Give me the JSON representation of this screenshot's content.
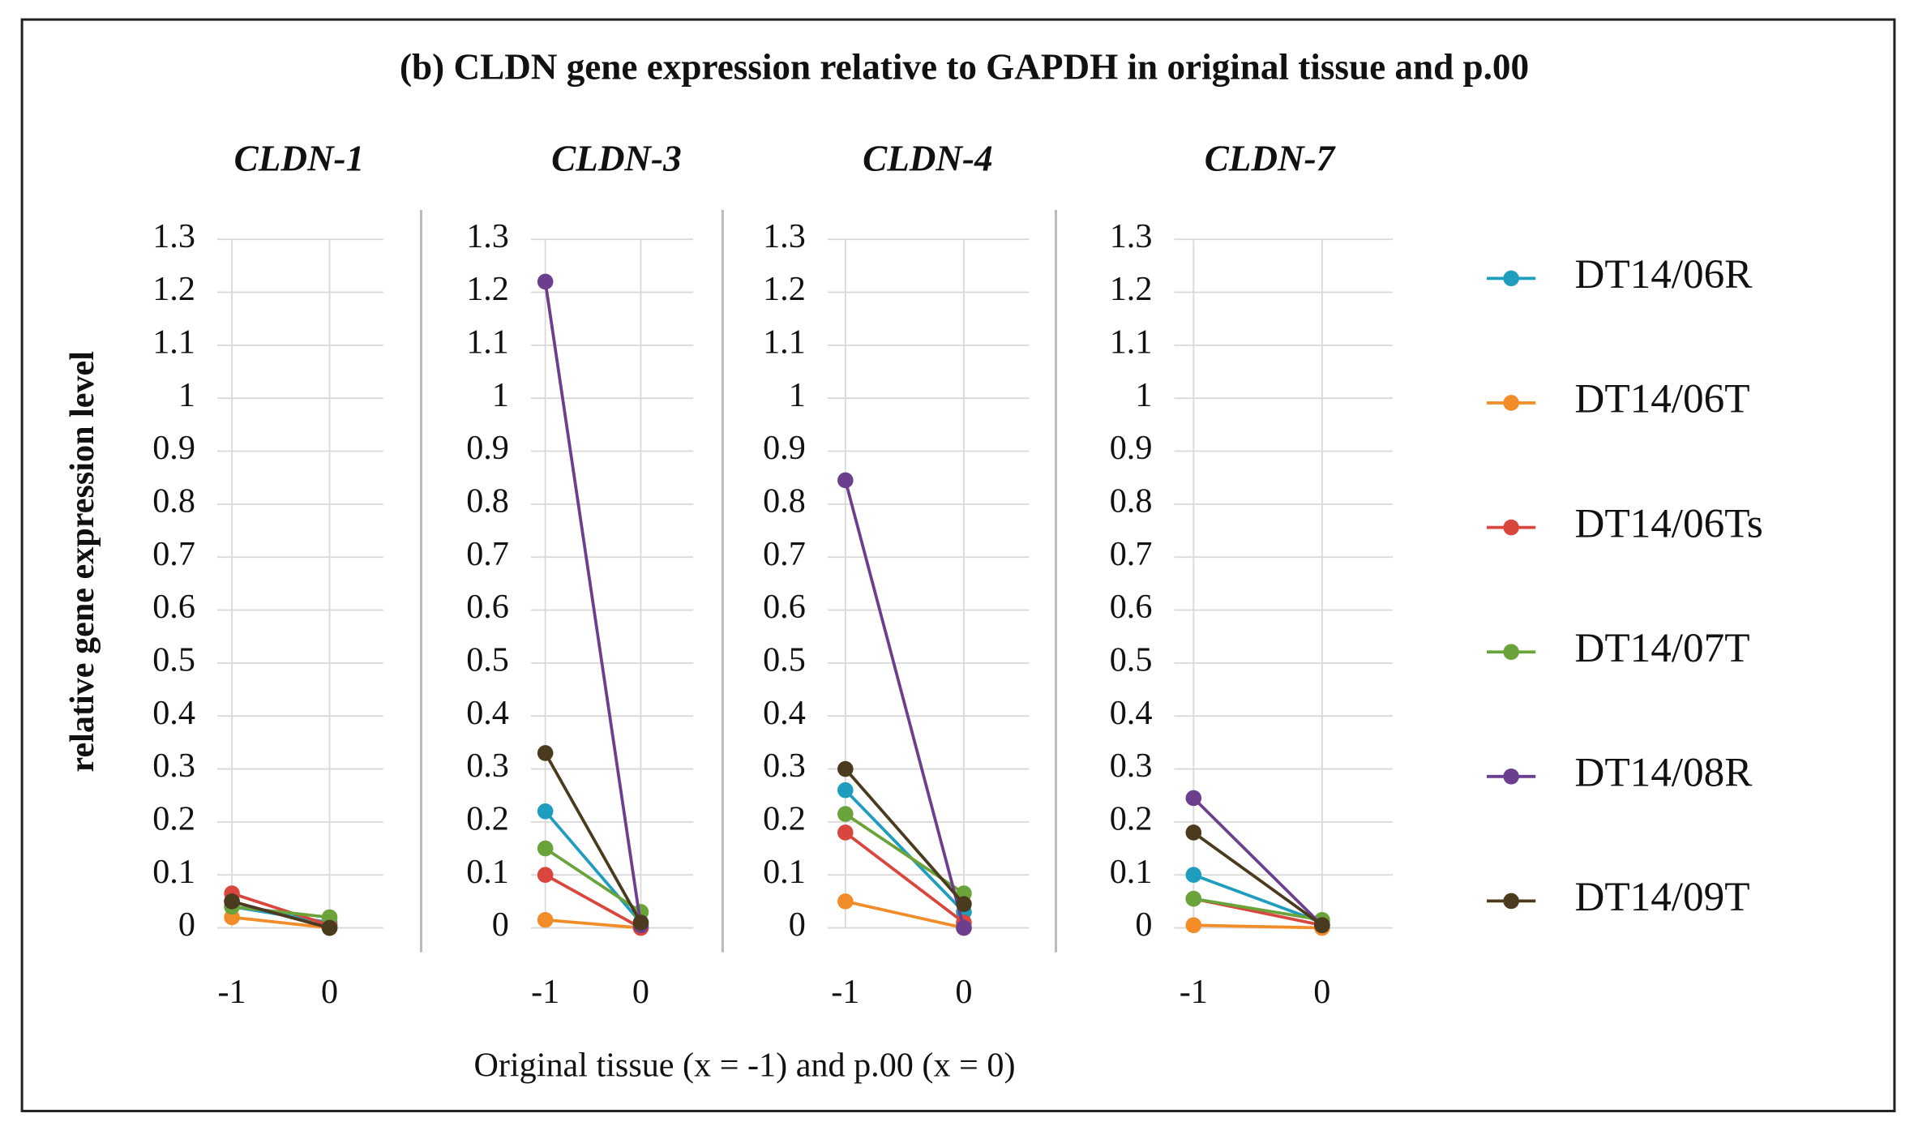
{
  "title": "(b) CLDN gene expression relative to GAPDH in original tissue and p.00",
  "ylabel": "relative gene expression level",
  "xlabel": "Original tissue (x = -1) and p.00 (x = 0)",
  "chart_data": [
    {
      "type": "line",
      "title": "CLDN-1",
      "x": [
        -1,
        0
      ],
      "xlim": [
        -1.15,
        0.55
      ],
      "xticks": [
        -1,
        0
      ],
      "ylim": [
        0,
        1.3
      ],
      "yticks": [
        0,
        0.1,
        0.2,
        0.3,
        0.4,
        0.5,
        0.6,
        0.7,
        0.8,
        0.9,
        1,
        1.1,
        1.2,
        1.3
      ],
      "grid": true,
      "series": [
        {
          "name": "DT14/06R",
          "color": "#1f9dbf",
          "values": [
            0.04,
            0.01
          ]
        },
        {
          "name": "DT14/06T",
          "color": "#f28c28",
          "values": [
            0.02,
            0.0
          ]
        },
        {
          "name": "DT14/06Ts",
          "color": "#d9463e",
          "values": [
            0.065,
            0.005
          ]
        },
        {
          "name": "DT14/07T",
          "color": "#6aa33a",
          "values": [
            0.04,
            0.02
          ]
        },
        {
          "name": "DT14/08R",
          "color": "#6b3f8e",
          "values": [
            0.05,
            0.0
          ]
        },
        {
          "name": "DT14/09T",
          "color": "#4a3a1e",
          "values": [
            0.05,
            0.0
          ]
        }
      ]
    },
    {
      "type": "line",
      "title": "CLDN-3",
      "x": [
        -1,
        0
      ],
      "xlim": [
        -1.15,
        0.55
      ],
      "xticks": [
        -1,
        0
      ],
      "ylim": [
        0,
        1.3
      ],
      "yticks": [
        0,
        0.1,
        0.2,
        0.3,
        0.4,
        0.5,
        0.6,
        0.7,
        0.8,
        0.9,
        1,
        1.1,
        1.2,
        1.3
      ],
      "grid": true,
      "series": [
        {
          "name": "DT14/06R",
          "color": "#1f9dbf",
          "values": [
            0.22,
            0.01
          ]
        },
        {
          "name": "DT14/06T",
          "color": "#f28c28",
          "values": [
            0.015,
            0.0
          ]
        },
        {
          "name": "DT14/06Ts",
          "color": "#d9463e",
          "values": [
            0.1,
            0.0
          ]
        },
        {
          "name": "DT14/07T",
          "color": "#6aa33a",
          "values": [
            0.15,
            0.03
          ]
        },
        {
          "name": "DT14/08R",
          "color": "#6b3f8e",
          "values": [
            1.22,
            0.005
          ]
        },
        {
          "name": "DT14/09T",
          "color": "#4a3a1e",
          "values": [
            0.33,
            0.01
          ]
        }
      ]
    },
    {
      "type": "line",
      "title": "CLDN-4",
      "x": [
        -1,
        0
      ],
      "xlim": [
        -1.15,
        0.55
      ],
      "xticks": [
        -1,
        0
      ],
      "ylim": [
        0,
        1.3
      ],
      "yticks": [
        0,
        0.1,
        0.2,
        0.3,
        0.4,
        0.5,
        0.6,
        0.7,
        0.8,
        0.9,
        1,
        1.1,
        1.2,
        1.3
      ],
      "grid": true,
      "series": [
        {
          "name": "DT14/06R",
          "color": "#1f9dbf",
          "values": [
            0.26,
            0.03
          ]
        },
        {
          "name": "DT14/06T",
          "color": "#f28c28",
          "values": [
            0.05,
            0.0
          ]
        },
        {
          "name": "DT14/06Ts",
          "color": "#d9463e",
          "values": [
            0.18,
            0.01
          ]
        },
        {
          "name": "DT14/07T",
          "color": "#6aa33a",
          "values": [
            0.215,
            0.065
          ]
        },
        {
          "name": "DT14/08R",
          "color": "#6b3f8e",
          "values": [
            0.845,
            0.0
          ]
        },
        {
          "name": "DT14/09T",
          "color": "#4a3a1e",
          "values": [
            0.3,
            0.045
          ]
        }
      ]
    },
    {
      "type": "line",
      "title": "CLDN-7",
      "x": [
        -1,
        0
      ],
      "xlim": [
        -1.15,
        0.55
      ],
      "xticks": [
        -1,
        0
      ],
      "ylim": [
        0,
        1.3
      ],
      "yticks": [
        0,
        0.1,
        0.2,
        0.3,
        0.4,
        0.5,
        0.6,
        0.7,
        0.8,
        0.9,
        1,
        1.1,
        1.2,
        1.3
      ],
      "grid": true,
      "series": [
        {
          "name": "DT14/06R",
          "color": "#1f9dbf",
          "values": [
            0.1,
            0.01
          ]
        },
        {
          "name": "DT14/06T",
          "color": "#f28c28",
          "values": [
            0.005,
            0.0
          ]
        },
        {
          "name": "DT14/06Ts",
          "color": "#d9463e",
          "values": [
            0.055,
            0.005
          ]
        },
        {
          "name": "DT14/07T",
          "color": "#6aa33a",
          "values": [
            0.055,
            0.015
          ]
        },
        {
          "name": "DT14/08R",
          "color": "#6b3f8e",
          "values": [
            0.245,
            0.005
          ]
        },
        {
          "name": "DT14/09T",
          "color": "#4a3a1e",
          "values": [
            0.18,
            0.005
          ]
        }
      ]
    }
  ]
}
